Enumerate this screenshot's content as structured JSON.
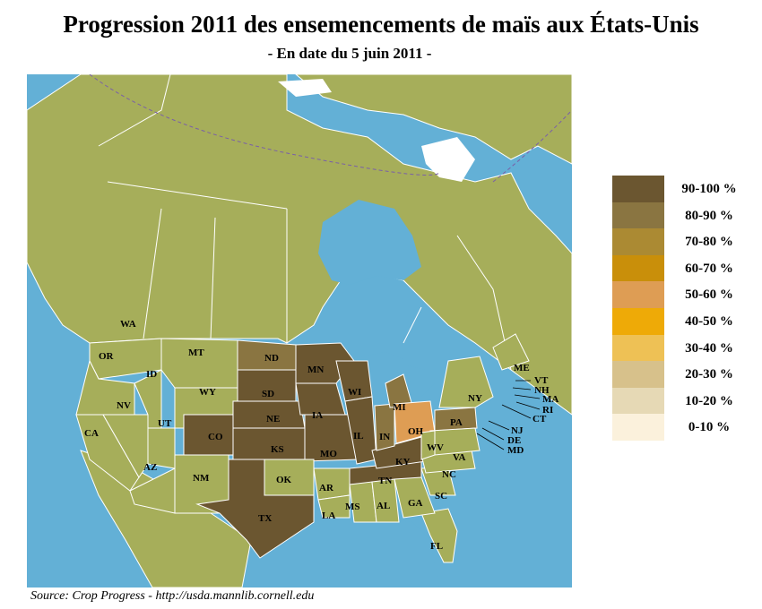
{
  "title": "Progression 2011 des ensemencements de maïs aux États-Unis",
  "subtitle": "-  En date du 5 juin 2011 -",
  "source": "Source: Crop Progress - http://usda.mannlib.cornell.edu",
  "colors": {
    "water": "#63b0d6",
    "land": "#a6ae5a",
    "border": "#ffffff"
  },
  "legend": [
    {
      "label": "90-100 %",
      "color": "#6b5630"
    },
    {
      "label": "80-90 %",
      "color": "#8a7541"
    },
    {
      "label": "70-80 %",
      "color": "#ab8a33"
    },
    {
      "label": "60-70 %",
      "color": "#c98f0a"
    },
    {
      "label": "50-60 %",
      "color": "#de9d54"
    },
    {
      "label": "40-50 %",
      "color": "#eeaa07"
    },
    {
      "label": "30-40 %",
      "color": "#eec155"
    },
    {
      "label": "20-30 %",
      "color": "#d7c18b"
    },
    {
      "label": "10-20 %",
      "color": "#e6d9b5"
    },
    {
      "label": "0-10 %",
      "color": "#fbf1dc"
    }
  ],
  "state_labels": {
    "WA": "WA",
    "OR": "OR",
    "CA": "CA",
    "NV": "NV",
    "ID": "ID",
    "MT": "MT",
    "WY": "WY",
    "UT": "UT",
    "AZ": "AZ",
    "CO": "CO",
    "NM": "NM",
    "ND": "ND",
    "SD": "SD",
    "NE": "NE",
    "KS": "KS",
    "OK": "OK",
    "TX": "TX",
    "MN": "MN",
    "IA": "IA",
    "MO": "MO",
    "AR": "AR",
    "LA": "LA",
    "WI": "WI",
    "IL": "IL",
    "MI": "MI",
    "IN": "IN",
    "OH": "OH",
    "KY": "KY",
    "TN": "TN",
    "MS": "MS",
    "AL": "AL",
    "GA": "GA",
    "FL": "FL",
    "SC": "SC",
    "NC": "NC",
    "VA": "VA",
    "WV": "WV",
    "PA": "PA",
    "NY": "NY",
    "ME": "ME",
    "VT": "VT",
    "NH": "NH",
    "MA": "MA",
    "RI": "RI",
    "CT": "CT",
    "NJ": "NJ",
    "DE": "DE",
    "MD": "MD"
  }
}
